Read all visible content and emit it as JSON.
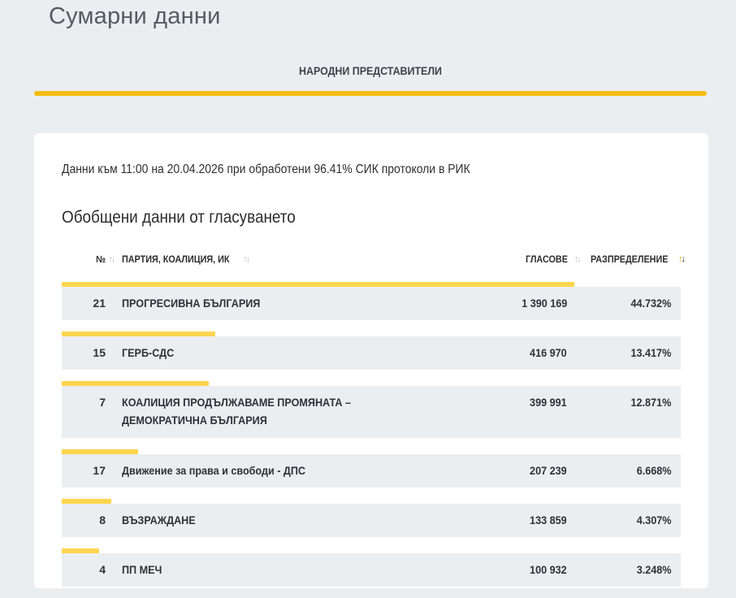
{
  "page_title": "Сумарни данни",
  "tab": {
    "label": "НАРОДНИ ПРЕДСТАВИТЕЛИ"
  },
  "info": "Данни към 11:00 на 20.04.2026 при обработени 96.41% СИК протоколи в РИК",
  "section_title_a": "Обобщени данни ",
  "section_title_b": "от гласуването",
  "headers": {
    "num": "№",
    "party": "ПАРТИЯ, КОАЛИЦИЯ, ИК",
    "votes": "ГЛАСОВЕ",
    "distribution": "РАЗПРЕДЕЛЕНИЕ"
  },
  "colors": {
    "accent": "#f5bd10",
    "bar": "#ffd54f",
    "row_bg": "#ebeef1"
  },
  "rows": [
    {
      "num": "21",
      "party": "ПРОГРЕСИВНА БЪЛГАРИЯ",
      "votes": "1 390 169",
      "distribution": "44.732%",
      "share": 0.44732
    },
    {
      "num": "15",
      "party": "ГЕРБ-СДС",
      "votes": "416 970",
      "distribution": "13.417%",
      "share": 0.13417
    },
    {
      "num": "7",
      "party": "КОАЛИЦИЯ ПРОДЪЛЖАВАМЕ ПРОМЯНАТА – ДЕМОКРАТИЧНА БЪЛГАРИЯ",
      "votes": "399 991",
      "distribution": "12.871%",
      "share": 0.12871
    },
    {
      "num": "17",
      "party": "Движение за права и свободи - ДПС",
      "votes": "207 239",
      "distribution": "6.668%",
      "share": 0.06668
    },
    {
      "num": "8",
      "party": "ВЪЗРАЖДАНЕ",
      "votes": "133 859",
      "distribution": "4.307%",
      "share": 0.04307
    },
    {
      "num": "4",
      "party": "ПП МЕЧ",
      "votes": "100 932",
      "distribution": "3.248%",
      "share": 0.03248
    }
  ]
}
